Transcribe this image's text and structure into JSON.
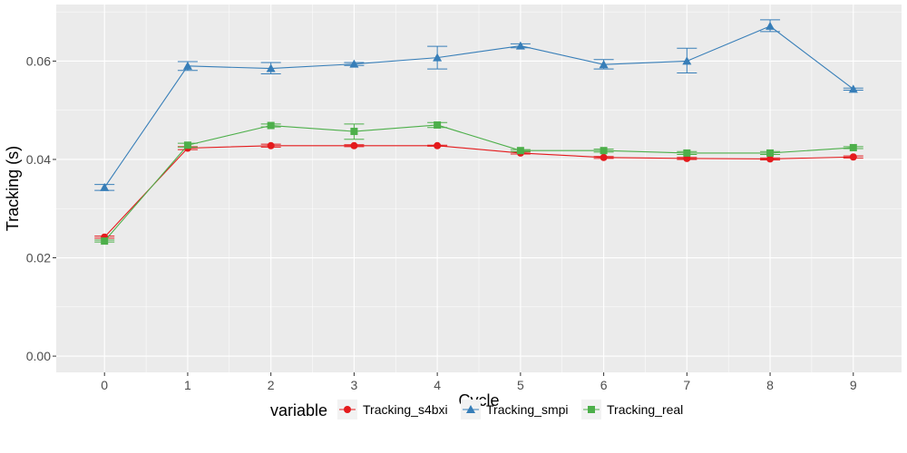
{
  "chart_data": {
    "type": "line",
    "title": "",
    "xlabel": "Cycle",
    "ylabel": "Tracking (s)",
    "x": [
      0,
      1,
      2,
      3,
      4,
      5,
      6,
      7,
      8,
      9
    ],
    "x_ticks": [
      "0",
      "1",
      "2",
      "3",
      "4",
      "5",
      "6",
      "7",
      "8",
      "9"
    ],
    "xlim": [
      -0.58,
      9.58
    ],
    "ylim": [
      -0.0033,
      0.0715
    ],
    "y_ticks": [
      0.0,
      0.02,
      0.04,
      0.06
    ],
    "y_tick_labels": [
      "0.00",
      "0.02",
      "0.04",
      "0.06"
    ],
    "grid": true,
    "legend": {
      "title": "variable",
      "placement": "bottom"
    },
    "series": [
      {
        "name": "Tracking_s4bxi",
        "color": "#E41A1C",
        "marker": "circle",
        "values": [
          0.0242,
          0.0423,
          0.0428,
          0.0428,
          0.0428,
          0.0413,
          0.0404,
          0.0402,
          0.0401,
          0.0405
        ],
        "err_low": [
          0.024,
          0.042,
          0.0425,
          0.0426,
          0.0427,
          0.0411,
          0.0402,
          0.04,
          0.0399,
          0.0403
        ],
        "err_high": [
          0.0244,
          0.0426,
          0.0431,
          0.043,
          0.0429,
          0.0415,
          0.0406,
          0.0404,
          0.0403,
          0.0407
        ]
      },
      {
        "name": "Tracking_smpi",
        "color": "#377EB8",
        "marker": "triangle",
        "values": [
          0.0343,
          0.059,
          0.0585,
          0.0594,
          0.0607,
          0.0631,
          0.0593,
          0.06,
          0.0671,
          0.0543
        ],
        "err_low": [
          0.0337,
          0.0581,
          0.0574,
          0.0591,
          0.0584,
          0.0627,
          0.0584,
          0.0576,
          0.066,
          0.0541
        ],
        "err_high": [
          0.0349,
          0.0599,
          0.0597,
          0.0597,
          0.063,
          0.0635,
          0.0603,
          0.0626,
          0.0684,
          0.0545
        ]
      },
      {
        "name": "Tracking_real",
        "color": "#4DAF4A",
        "marker": "square",
        "values": [
          0.0234,
          0.0429,
          0.0469,
          0.0457,
          0.047,
          0.0418,
          0.0418,
          0.0413,
          0.0413,
          0.0424
        ],
        "err_low": [
          0.0232,
          0.0425,
          0.0466,
          0.0441,
          0.0465,
          0.0416,
          0.0415,
          0.041,
          0.041,
          0.0422
        ],
        "err_high": [
          0.0236,
          0.0433,
          0.0472,
          0.0472,
          0.0475,
          0.042,
          0.0421,
          0.0416,
          0.0416,
          0.0426
        ]
      }
    ]
  }
}
